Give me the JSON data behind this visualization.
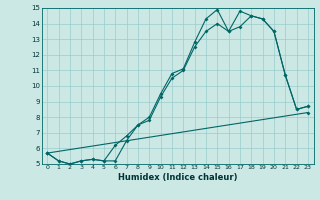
{
  "xlabel": "Humidex (Indice chaleur)",
  "bg_color": "#cce8e4",
  "grid_color": "#99cccc",
  "line_color": "#006666",
  "xlim": [
    -0.5,
    23.5
  ],
  "ylim": [
    5,
    15
  ],
  "xticks": [
    0,
    1,
    2,
    3,
    4,
    5,
    6,
    7,
    8,
    9,
    10,
    11,
    12,
    13,
    14,
    15,
    16,
    17,
    18,
    19,
    20,
    21,
    22,
    23
  ],
  "yticks": [
    5,
    6,
    7,
    8,
    9,
    10,
    11,
    12,
    13,
    14,
    15
  ],
  "line1_x": [
    0,
    1,
    2,
    3,
    4,
    5,
    6,
    7,
    8,
    9,
    10,
    11,
    12,
    13,
    14,
    15,
    16,
    17,
    18,
    19,
    20,
    21,
    22,
    23
  ],
  "line1_y": [
    5.7,
    5.2,
    5.0,
    5.2,
    5.3,
    5.2,
    5.2,
    6.5,
    7.5,
    8.0,
    9.5,
    10.8,
    11.1,
    12.8,
    14.3,
    14.9,
    13.5,
    14.8,
    14.5,
    14.3,
    13.5,
    10.7,
    8.5,
    8.7
  ],
  "line2_x": [
    0,
    1,
    2,
    3,
    4,
    5,
    6,
    7,
    8,
    9,
    10,
    11,
    12,
    13,
    14,
    15,
    16,
    17,
    18,
    19,
    20,
    21,
    22,
    23
  ],
  "line2_y": [
    5.7,
    5.2,
    5.0,
    5.2,
    5.3,
    5.2,
    6.2,
    6.8,
    7.5,
    7.8,
    9.3,
    10.5,
    11.0,
    12.5,
    13.5,
    14.0,
    13.5,
    13.8,
    14.5,
    14.3,
    13.5,
    10.7,
    8.5,
    8.7
  ],
  "line3_x": [
    0,
    23
  ],
  "line3_y": [
    5.7,
    8.3
  ]
}
